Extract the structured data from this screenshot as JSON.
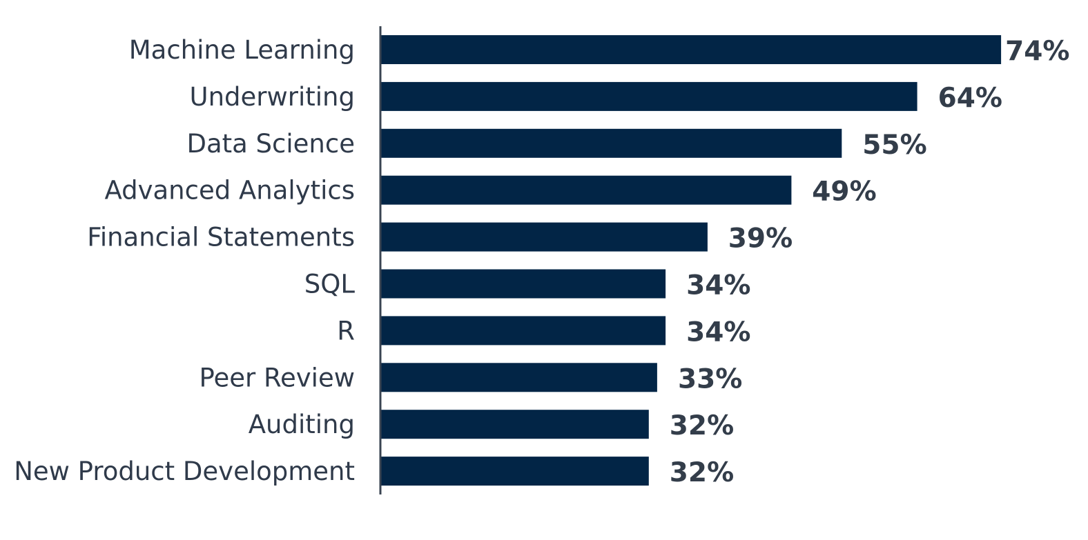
{
  "chart_data": {
    "type": "bar",
    "orientation": "horizontal",
    "categories": [
      "Machine Learning",
      "Underwriting",
      "Data Science",
      "Advanced Analytics",
      "Financial Statements",
      "SQL",
      "R",
      "Peer Review",
      "Auditing",
      "New Product Development"
    ],
    "values": [
      74,
      64,
      55,
      49,
      39,
      34,
      34,
      33,
      32,
      32
    ],
    "value_labels": [
      "74%",
      "64%",
      "55%",
      "49%",
      "39%",
      "34%",
      "34%",
      "33%",
      "32%",
      "32%"
    ],
    "unit": "%",
    "xlim": [
      0,
      80
    ],
    "grid": false,
    "legend": "none",
    "colors": {
      "bar": "#022546",
      "axis": "#3a4452",
      "category_text": "#2f3a4a",
      "value_text": "#333d4a"
    }
  }
}
